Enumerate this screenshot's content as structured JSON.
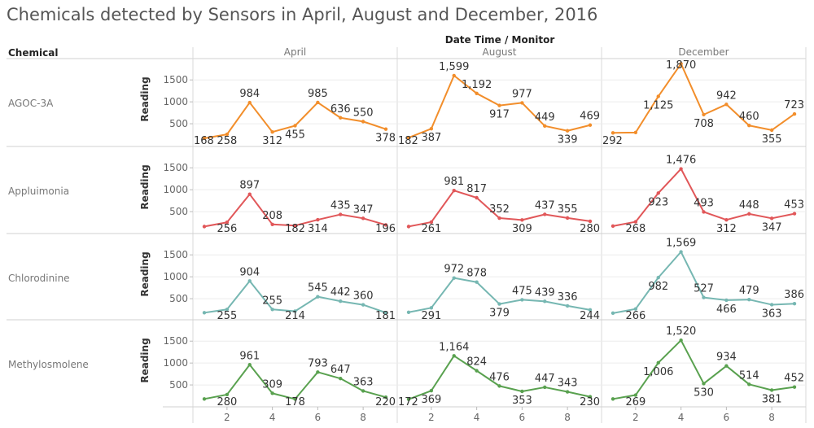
{
  "title": "Chemicals detected by Sensors in April, August and December, 2016",
  "header": {
    "column_group_label": "Date Time / Monitor",
    "row_dimension_label": "Chemical",
    "months": [
      "April",
      "August",
      "December"
    ]
  },
  "axis": {
    "y_label": "Reading",
    "y_ticks": [
      "1500",
      "1000",
      "500"
    ],
    "x_ticks": [
      "2",
      "4",
      "6",
      "8"
    ]
  },
  "colors": {
    "AGOC-3A": "#f28e2b",
    "Appluimonia": "#e15759",
    "Chlorodinine": "#76b7b2",
    "Methylosmolene": "#59a14f"
  },
  "chart_data": {
    "type": "line",
    "title": "Chemicals detected by Sensors in April, August and December, 2016",
    "xlabel": "Monitor",
    "ylabel": "Reading",
    "x": [
      1,
      2,
      3,
      4,
      5,
      6,
      7,
      8,
      9
    ],
    "x_ticks": [
      2,
      4,
      6,
      8
    ],
    "ylim": [
      0,
      1950
    ],
    "y_ticks": [
      500,
      1000,
      1500
    ],
    "grid": true,
    "rows": [
      {
        "chemical": "AGOC-3A",
        "color": "#f28e2b",
        "panels": [
          {
            "month": "April",
            "values": [
              168,
              258,
              984,
              312,
              455,
              985,
              636,
              550,
              378
            ],
            "labels": [
              "168",
              "258",
              "984",
              "312",
              "455",
              "985",
              "636",
              "550",
              "378"
            ]
          },
          {
            "month": "August",
            "values": [
              182,
              387,
              1599,
              1192,
              917,
              977,
              449,
              339,
              469
            ],
            "labels": [
              "182",
              "387",
              "1,599",
              "1,192",
              "917",
              "977",
              "449",
              "339",
              "469"
            ]
          },
          {
            "month": "December",
            "values": [
              292,
              300,
              1125,
              1870,
              708,
              942,
              460,
              355,
              723
            ],
            "labels": [
              "292",
              "",
              "1,125",
              "1,870",
              "708",
              "942",
              "460",
              "355",
              "723"
            ]
          }
        ]
      },
      {
        "chemical": "Appluimonia",
        "color": "#e15759",
        "panels": [
          {
            "month": "April",
            "values": [
              160,
              256,
              897,
              208,
              182,
              314,
              435,
              347,
              196
            ],
            "labels": [
              "",
              "256",
              "897",
              "208",
              "182",
              "314",
              "435",
              "347",
              "196"
            ]
          },
          {
            "month": "August",
            "values": [
              160,
              261,
              981,
              817,
              352,
              309,
              437,
              355,
              280
            ],
            "labels": [
              "",
              "261",
              "981",
              "817",
              "352",
              "309",
              "437",
              "355",
              "280"
            ]
          },
          {
            "month": "December",
            "values": [
              170,
              268,
              923,
              1476,
              493,
              312,
              448,
              347,
              453
            ],
            "labels": [
              "",
              "268",
              "923",
              "1,476",
              "493",
              "312",
              "448",
              "347",
              "453"
            ]
          }
        ]
      },
      {
        "chemical": "Chlorodinine",
        "color": "#76b7b2",
        "panels": [
          {
            "month": "April",
            "values": [
              180,
              255,
              904,
              255,
              214,
              545,
              442,
              360,
              181
            ],
            "labels": [
              "",
              "255",
              "904",
              "255",
              "214",
              "545",
              "442",
              "360",
              "181"
            ]
          },
          {
            "month": "August",
            "values": [
              190,
              291,
              972,
              878,
              379,
              475,
              439,
              336,
              244
            ],
            "labels": [
              "",
              "291",
              "972",
              "878",
              "379",
              "475",
              "439",
              "336",
              "244"
            ]
          },
          {
            "month": "December",
            "values": [
              170,
              266,
              982,
              1569,
              527,
              466,
              479,
              363,
              386
            ],
            "labels": [
              "",
              "266",
              "982",
              "1,569",
              "527",
              "466",
              "479",
              "363",
              "386"
            ]
          }
        ]
      },
      {
        "chemical": "Methylosmolene",
        "color": "#59a14f",
        "panels": [
          {
            "month": "April",
            "values": [
              180,
              280,
              961,
              309,
              178,
              793,
              647,
              363,
              220
            ],
            "labels": [
              "",
              "280",
              "961",
              "309",
              "178",
              "793",
              "647",
              "363",
              "220"
            ]
          },
          {
            "month": "August",
            "values": [
              172,
              369,
              1164,
              824,
              476,
              353,
              447,
              343,
              230
            ],
            "labels": [
              "172",
              "369",
              "1,164",
              "824",
              "476",
              "353",
              "447",
              "343",
              "230"
            ]
          },
          {
            "month": "December",
            "values": [
              180,
              269,
              1006,
              1520,
              530,
              934,
              514,
              381,
              452
            ],
            "labels": [
              "",
              "269",
              "1,006",
              "1,520",
              "530",
              "934",
              "514",
              "381",
              "452"
            ]
          }
        ]
      }
    ]
  }
}
